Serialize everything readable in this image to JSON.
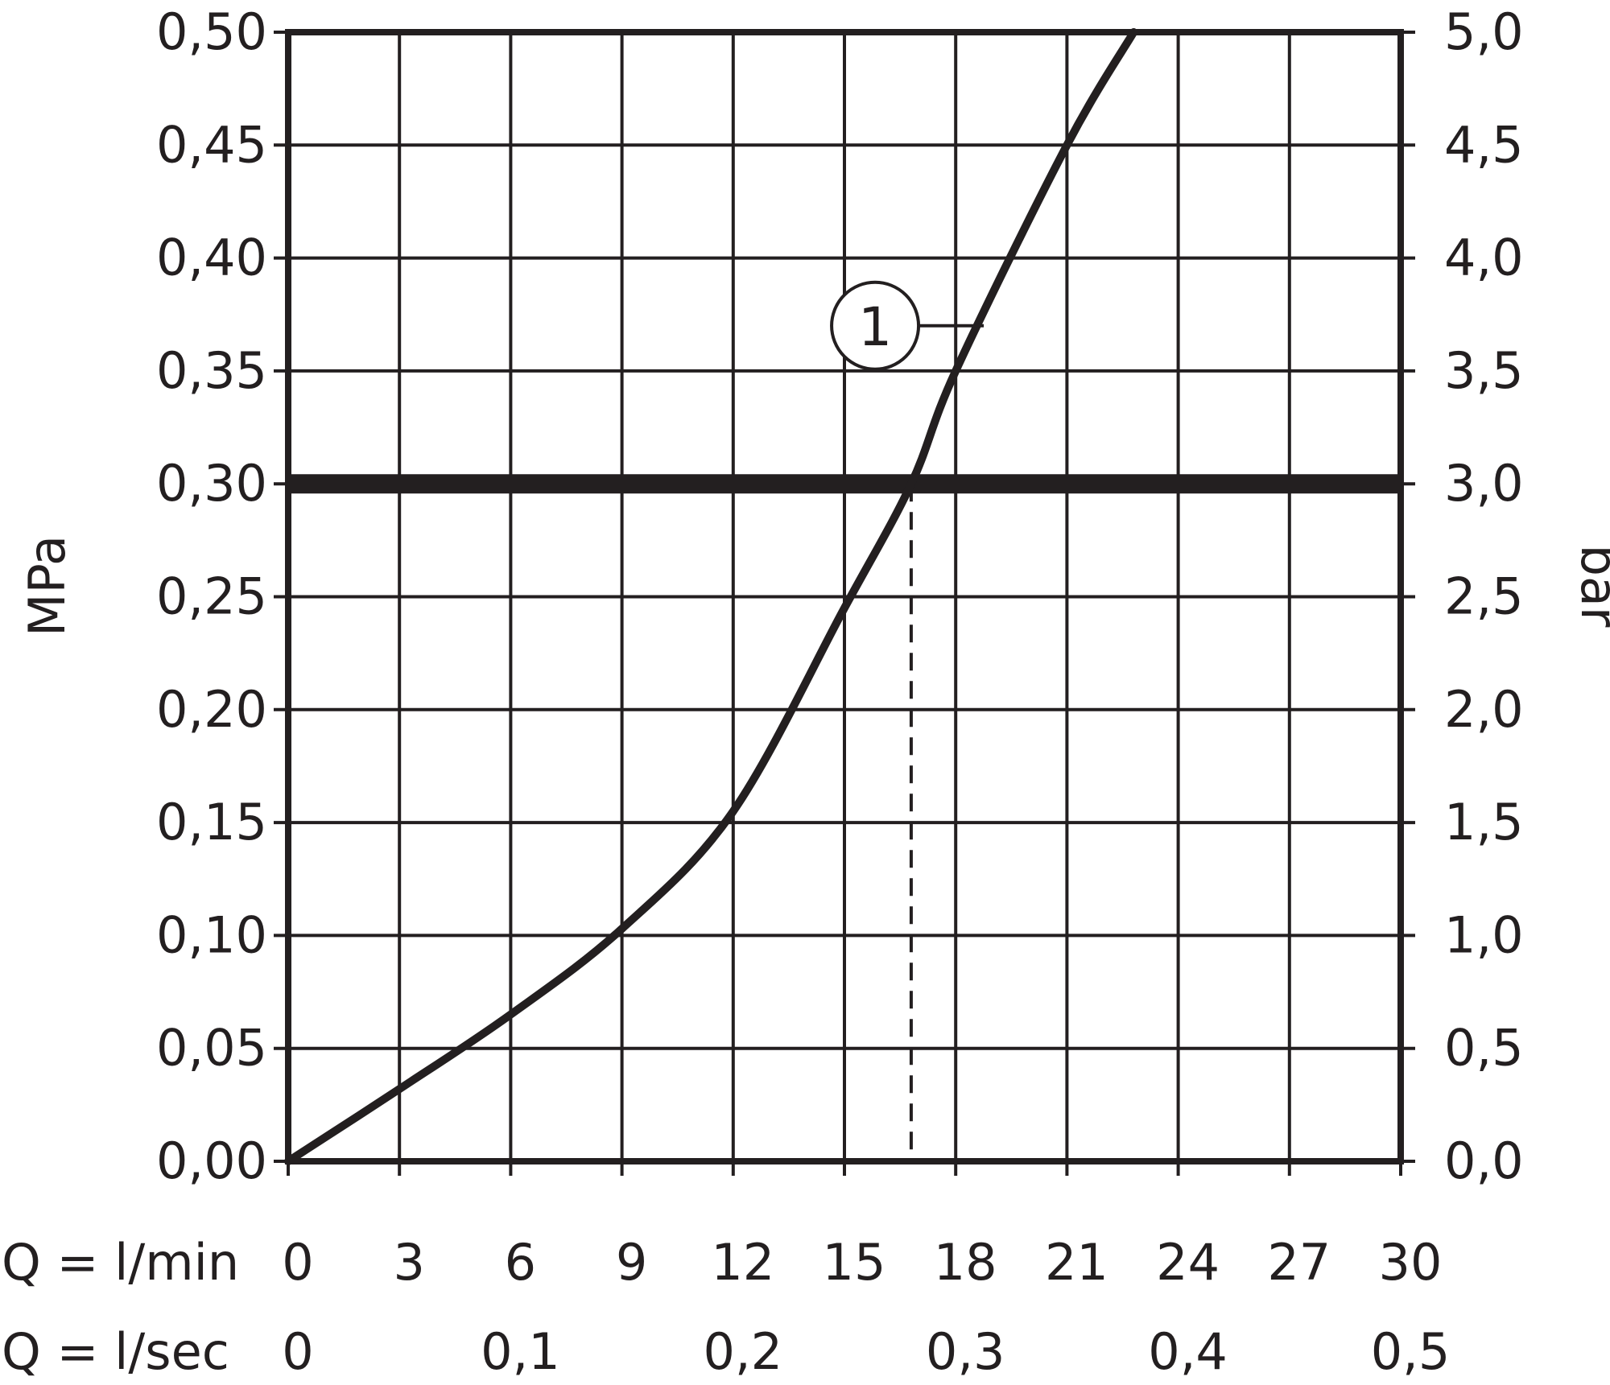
{
  "chart_data": {
    "type": "line",
    "xlim": [
      0,
      30
    ],
    "ylim": [
      0,
      0.5
    ],
    "grid": true,
    "left_axis": {
      "label": "MPa",
      "ticks": [
        0,
        0.05,
        0.1,
        0.15,
        0.2,
        0.25,
        0.3,
        0.35,
        0.4,
        0.45,
        0.5
      ],
      "tick_labels": [
        "0,00",
        "0,05",
        "0,10",
        "0,15",
        "0,20",
        "0,25",
        "0,30",
        "0,35",
        "0,40",
        "0,45",
        "0,50"
      ]
    },
    "right_axis": {
      "label": "bar",
      "ticks": [
        0,
        0.5,
        1,
        1.5,
        2,
        2.5,
        3,
        3.5,
        4,
        4.5,
        5
      ],
      "tick_labels": [
        "0,0",
        "0,5",
        "1,0",
        "1,5",
        "2,0",
        "2,5",
        "3,0",
        "3,5",
        "4,0",
        "4,5",
        "5,0"
      ]
    },
    "x_axis_primary": {
      "label": "Q = l/min",
      "ticks": [
        0,
        3,
        6,
        9,
        12,
        15,
        18,
        21,
        24,
        27,
        30
      ],
      "tick_labels": [
        "0",
        "3",
        "6",
        "9",
        "12",
        "15",
        "18",
        "21",
        "24",
        "27",
        "30"
      ]
    },
    "x_axis_secondary": {
      "label": "Q = l/sec",
      "positions_lmin": [
        0,
        6,
        12,
        18,
        24,
        30
      ],
      "tick_labels": [
        "0",
        "0,1",
        "0,2",
        "0,3",
        "0,4",
        "0,5"
      ]
    },
    "series": [
      {
        "x": [
          0,
          3,
          6,
          9,
          12,
          15,
          16.8,
          18,
          21,
          22.8
        ],
        "y": [
          0,
          0.032,
          0.065,
          0.103,
          0.155,
          0.245,
          0.3,
          0.35,
          0.45,
          0.5
        ]
      }
    ],
    "reference_line": {
      "y": 0.3
    },
    "marker_line": {
      "x": 16.8
    },
    "annotation": {
      "text": "1",
      "x": 16,
      "y": 0.37
    }
  }
}
